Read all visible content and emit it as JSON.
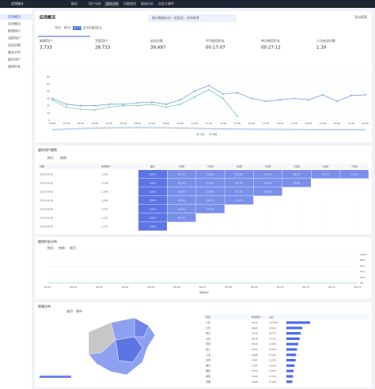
{
  "nav": {
    "brand": "应用统计",
    "items": [
      "概况",
      "用户分析",
      "留存分析",
      "功能使用",
      "渠道分析",
      "自定义事件"
    ]
  },
  "sidebar": [
    "应用概况",
    "实时概况",
    "新增用户",
    "活跃用户",
    "启动次数",
    "版本分布",
    "留存用户",
    "使用时长"
  ],
  "overview": {
    "title": "应用概况",
    "tabs": [
      "今日",
      "昨日",
      "近7日",
      "近30日",
      "自定义"
    ],
    "notice": "统计数据存在一定延迟，仅供参考",
    "export": "导出报表",
    "kpis": [
      {
        "label": "新增用户",
        "value": "3,733"
      },
      {
        "label": "活跃用户",
        "value": "28,733"
      },
      {
        "label": "启动次数",
        "value": "39,497"
      },
      {
        "label": "平均使用时长",
        "value": "00:17:07"
      },
      {
        "label": "单次使用时长",
        "value": "00:27:12"
      },
      {
        "label": "人均启动次数",
        "value": "1.39"
      }
    ]
  },
  "trend": {
    "categories": [
      "00:00",
      "01:00",
      "02:00",
      "03:00",
      "04:00",
      "05:00",
      "06:00",
      "07:00",
      "08:00",
      "09:00",
      "10:00",
      "11:00",
      "12:00",
      "13:00",
      "14:00",
      "15:00",
      "16:00",
      "17:00",
      "18:00",
      "19:00",
      "20:00",
      "21:00",
      "22:00"
    ],
    "series": [
      {
        "name": "今日",
        "color": "#4e7de9",
        "values": [
          30,
          22,
          20,
          20,
          22,
          22,
          24,
          25,
          22,
          28,
          40,
          48,
          36,
          38,
          30,
          26,
          28,
          30,
          28,
          35,
          26,
          34,
          35
        ]
      },
      {
        "name": "昨日",
        "color": "#3fc38a",
        "values": [
          28,
          18,
          15,
          14,
          18,
          20,
          20,
          22,
          18,
          22,
          32,
          42,
          30,
          5,
          null,
          null,
          null,
          null,
          null,
          null,
          null,
          null,
          null
        ]
      }
    ],
    "ylim": [
      0,
      60
    ],
    "yticks": [
      0,
      10,
      20,
      30,
      40,
      50,
      60
    ]
  },
  "retention": {
    "title": "留存用户趋势",
    "tabs": [
      "按天",
      "按周"
    ],
    "headers": [
      "日期",
      "新增用户",
      "首日",
      "1天后",
      "2天后",
      "3天后",
      "4天后",
      "5天后",
      "6天后",
      "7天后"
    ],
    "rows": [
      [
        "2023-06-01",
        "1,203",
        "100%",
        "42.1%",
        "35.6%",
        "30.2%",
        "28.7%",
        "26.1%",
        "24.5%",
        "22.9%"
      ],
      [
        "2023-06-02",
        "1,156",
        "100%",
        "41.3%",
        "34.8%",
        "29.7%",
        "27.5%",
        "25.6%",
        "-",
        "-"
      ],
      [
        "2023-06-03",
        "1,098",
        "100%",
        "40.6%",
        "33.9%",
        "29.1%",
        "26.8%",
        "-",
        "-",
        "-"
      ],
      [
        "2023-06-04",
        "1,240",
        "100%",
        "43.2%",
        "36.1%",
        "31.0%",
        "-",
        "-",
        "-",
        "-"
      ],
      [
        "2023-06-05",
        "1,187",
        "100%",
        "41.8%",
        "35.2%",
        "-",
        "-",
        "-",
        "-",
        "-"
      ],
      [
        "2023-06-06",
        "1,221",
        "100%",
        "42.5%",
        "-",
        "-",
        "-",
        "-",
        "-",
        "-"
      ],
      [
        "2023-06-07",
        "1,175",
        "100%",
        "-",
        "-",
        "-",
        "-",
        "-",
        "-",
        "-"
      ]
    ]
  },
  "usage": {
    "title": "使用时长分布",
    "tabs": [
      "按天",
      "按周",
      "按月"
    ],
    "categories": [
      "06-01",
      "06-02",
      "06-03",
      "06-04",
      "06-05",
      "06-06",
      "06-07",
      "06-08",
      "06-09",
      "06-10",
      "06-11",
      "06-12",
      "06-13"
    ],
    "ylim": [
      0,
      100
    ],
    "yticks": [
      {
        "value": 0,
        "label": "0%"
      },
      {
        "value": 20,
        "label": "20%"
      },
      {
        "value": 40,
        "label": "40%"
      },
      {
        "value": 60,
        "label": "60%"
      },
      {
        "value": 80,
        "label": "80%"
      },
      {
        "value": 100,
        "label": "100%"
      }
    ],
    "legend": "使用时长"
  },
  "region": {
    "title": "地域分布",
    "tabs": [
      "省份",
      "城市"
    ],
    "columns": [
      "省份",
      "新增用户",
      "占比"
    ],
    "rows": [
      [
        "广东",
        5125,
        "13.50%"
      ],
      [
        "江苏",
        3421,
        "9.01%"
      ],
      [
        "浙江",
        3102,
        "8.17%"
      ],
      [
        "山东",
        2876,
        "7.57%"
      ],
      [
        "河南",
        2540,
        "6.69%"
      ],
      [
        "四川",
        2311,
        "6.09%"
      ],
      [
        "上海",
        2098,
        "5.52%"
      ],
      [
        "北京",
        1987,
        "5.23%"
      ],
      [
        "湖北",
        1765,
        "4.65%"
      ],
      [
        "福建",
        1532,
        "4.03%"
      ],
      [
        "湖南",
        1410,
        "3.71%"
      ],
      [
        "安徽",
        1288,
        "3.39%"
      ]
    ]
  }
}
